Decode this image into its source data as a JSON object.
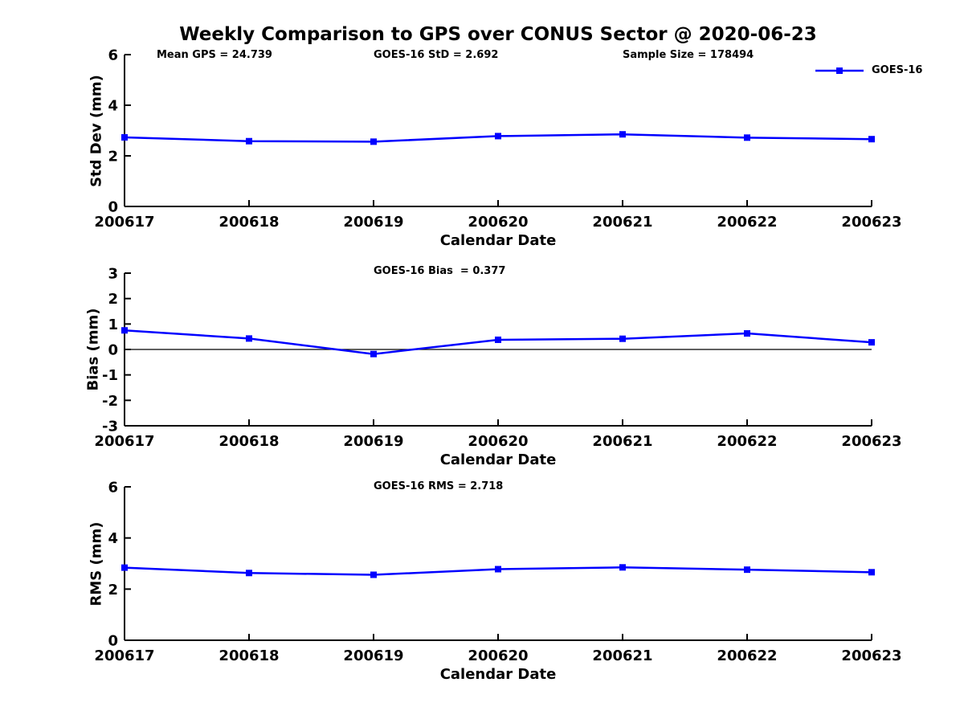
{
  "title": "Weekly Comparison to GPS over CONUS Sector @ 2020-06-23",
  "legend": {
    "label": "GOES-16"
  },
  "colors": {
    "series": "#0000ff",
    "axis": "#000000",
    "text": "#000000",
    "background": "#ffffff"
  },
  "chart_data": [
    {
      "type": "line",
      "name": "std-dev",
      "categories": [
        "200617",
        "200618",
        "200619",
        "200620",
        "200621",
        "200622",
        "200623"
      ],
      "series": [
        {
          "name": "GOES-16",
          "values": [
            2.73,
            2.58,
            2.56,
            2.78,
            2.85,
            2.72,
            2.66
          ]
        }
      ],
      "ylabel": "Std Dev (mm)",
      "xlabel": "Calendar Date",
      "ylim": [
        0,
        6
      ],
      "yticks": [
        0,
        2,
        4,
        6
      ],
      "grid": false,
      "zero_line": false,
      "marker": "square",
      "legend_entry": "GOES-16",
      "legend_position": "top-right",
      "annotations": [
        {
          "text": "Mean GPS = 24.739"
        },
        {
          "text": "GOES-16 StD = 2.692"
        },
        {
          "text": "Sample Size = 178494"
        }
      ]
    },
    {
      "type": "line",
      "name": "bias",
      "categories": [
        "200617",
        "200618",
        "200619",
        "200620",
        "200621",
        "200622",
        "200623"
      ],
      "series": [
        {
          "name": "GOES-16",
          "values": [
            0.75,
            0.43,
            -0.18,
            0.38,
            0.42,
            0.63,
            0.28
          ]
        }
      ],
      "ylabel": "Bias (mm)",
      "xlabel": "Calendar Date",
      "ylim": [
        -3,
        3
      ],
      "yticks": [
        -3,
        -2,
        -1,
        0,
        1,
        2,
        3
      ],
      "grid": false,
      "zero_line": true,
      "marker": "square",
      "annotations": [
        {
          "text": "GOES-16 Bias  = 0.377"
        }
      ]
    },
    {
      "type": "line",
      "name": "rms",
      "categories": [
        "200617",
        "200618",
        "200619",
        "200620",
        "200621",
        "200622",
        "200623"
      ],
      "series": [
        {
          "name": "GOES-16",
          "values": [
            2.84,
            2.63,
            2.56,
            2.78,
            2.85,
            2.76,
            2.66
          ]
        }
      ],
      "ylabel": "RMS (mm)",
      "xlabel": "Calendar Date",
      "ylim": [
        0,
        6
      ],
      "yticks": [
        0,
        2,
        4,
        6
      ],
      "grid": false,
      "zero_line": false,
      "marker": "square",
      "annotations": [
        {
          "text": "GOES-16 RMS = 2.718"
        }
      ]
    }
  ]
}
